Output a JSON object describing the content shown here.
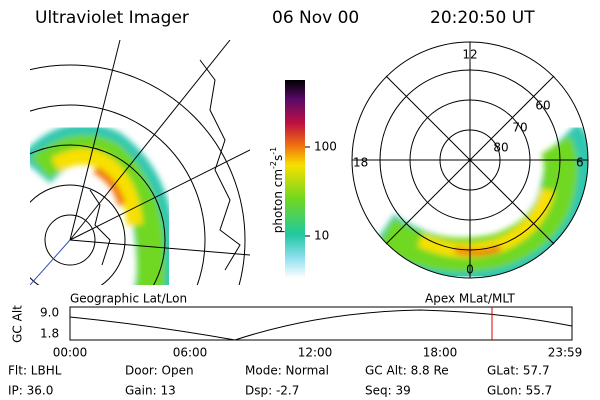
{
  "header": {
    "title": "Ultraviolet Imager",
    "date": "06 Nov 00",
    "time": "20:20:50 UT"
  },
  "left_panel": {
    "label": "Geographic Lat/Lon"
  },
  "right_panel": {
    "label": "Apex MLat/MLT",
    "mlt_labels": [
      "12",
      "18",
      "6",
      "0"
    ],
    "mlat_labels": [
      "60",
      "70",
      "80"
    ]
  },
  "colorbar": {
    "label": "photon cm",
    "exp1": "-2",
    "unit2": "s",
    "exp2": "-1",
    "ticks": [
      "100",
      "10"
    ]
  },
  "altitude_plot": {
    "ylabel": "GC Alt",
    "yticks": [
      "9.0",
      "1.8"
    ],
    "xticks": [
      "00:00",
      "06:00",
      "12:00",
      "18:00",
      "23:59"
    ]
  },
  "info": [
    [
      "Flt: LBHL",
      "Door: Open",
      "Mode: Normal",
      "GC Alt: 8.8 Re",
      "GLat: 57.7"
    ],
    [
      "IP: 36.0",
      "Gain: 13",
      "Dsp: -2.7",
      "Seq: 39",
      "GLon: 55.7"
    ]
  ]
}
